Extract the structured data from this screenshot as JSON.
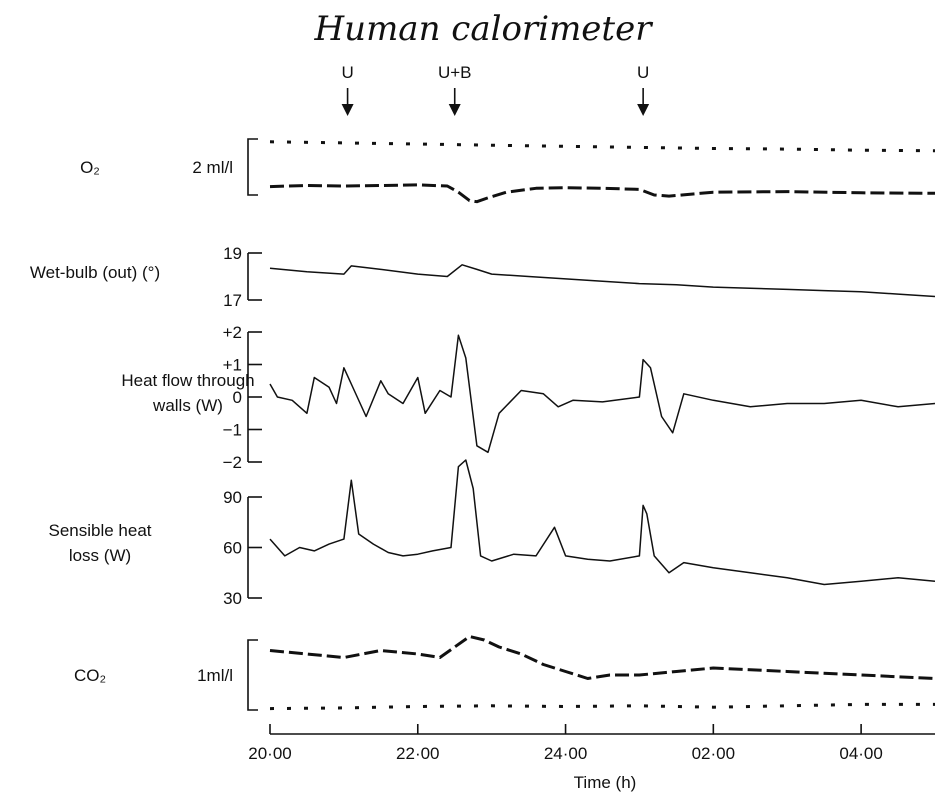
{
  "chart_data": {
    "type": "line",
    "title": "Human calorimeter",
    "xlabel": "Time (h)",
    "xlim": [
      20,
      29
    ],
    "x_ticks": [
      {
        "value": 20,
        "label": "20·00"
      },
      {
        "value": 22,
        "label": "22·00"
      },
      {
        "value": 24,
        "label": "24·00"
      },
      {
        "value": 26,
        "label": "02·00"
      },
      {
        "value": 28,
        "label": "04·00"
      }
    ],
    "annotations": [
      {
        "label": "U",
        "x": 21.05
      },
      {
        "label": "U+B",
        "x": 22.5
      },
      {
        "label": "U",
        "x": 25.05
      }
    ],
    "panels": [
      {
        "id": "o2",
        "label": "O₂",
        "scale_label": "2 ml/l",
        "series": [
          {
            "style": "dotted",
            "x": [
              20,
              21,
              22,
              23,
              24,
              25,
              26,
              27,
              28,
              29
            ],
            "y": [
              0.95,
              0.93,
              0.91,
              0.89,
              0.87,
              0.85,
              0.83,
              0.82,
              0.8,
              0.79
            ]
          },
          {
            "style": "dashed",
            "x": [
              20,
              20.5,
              21,
              21.5,
              22,
              22.4,
              22.55,
              22.7,
              22.8,
              22.95,
              23.2,
              23.6,
              24,
              24.5,
              25,
              25.2,
              25.4,
              26,
              27,
              28,
              29
            ],
            "y": [
              0.15,
              0.17,
              0.16,
              0.17,
              0.18,
              0.16,
              0.05,
              -0.1,
              -0.12,
              -0.05,
              0.05,
              0.12,
              0.13,
              0.12,
              0.1,
              0.0,
              -0.02,
              0.05,
              0.06,
              0.04,
              0.03
            ]
          }
        ]
      },
      {
        "id": "wet-bulb",
        "label": "Wet-bulb (out) (°)",
        "ylim": [
          17,
          19
        ],
        "y_ticks": [
          {
            "value": 19,
            "label": "19"
          },
          {
            "value": 17,
            "label": "17"
          }
        ],
        "series": [
          {
            "x": [
              20,
              20.5,
              21,
              21.1,
              21.5,
              22,
              22.4,
              22.6,
              22.8,
              23,
              23.5,
              24,
              24.5,
              25,
              25.5,
              26,
              26.5,
              27,
              27.5,
              28,
              28.5,
              29
            ],
            "y": [
              18.35,
              18.2,
              18.1,
              18.45,
              18.3,
              18.1,
              18.0,
              18.5,
              18.3,
              18.1,
              18.0,
              17.9,
              17.8,
              17.7,
              17.65,
              17.55,
              17.5,
              17.45,
              17.4,
              17.35,
              17.25,
              17.15
            ]
          }
        ]
      },
      {
        "id": "heat-flow",
        "label": "Heat flow through walls (W)",
        "ylim": [
          -2,
          2
        ],
        "y_ticks": [
          {
            "value": 2,
            "label": "+2"
          },
          {
            "value": 1,
            "label": "+1"
          },
          {
            "value": 0,
            "label": "0"
          },
          {
            "value": -1,
            "label": "−1"
          },
          {
            "value": -2,
            "label": "−2"
          }
        ],
        "series": [
          {
            "x": [
              20,
              20.1,
              20.3,
              20.5,
              20.6,
              20.8,
              20.9,
              21.0,
              21.1,
              21.3,
              21.5,
              21.6,
              21.8,
              22.0,
              22.1,
              22.3,
              22.45,
              22.55,
              22.65,
              22.8,
              22.95,
              23.1,
              23.4,
              23.7,
              23.9,
              24.1,
              24.5,
              25.0,
              25.05,
              25.15,
              25.3,
              25.45,
              25.6,
              26,
              26.5,
              27,
              27.5,
              28,
              28.5,
              29
            ],
            "y": [
              0.4,
              0.0,
              -0.1,
              -0.5,
              0.6,
              0.3,
              -0.2,
              0.9,
              0.4,
              -0.6,
              0.5,
              0.1,
              -0.2,
              0.6,
              -0.5,
              0.2,
              0.0,
              1.9,
              1.2,
              -1.5,
              -1.7,
              -0.5,
              0.2,
              0.1,
              -0.3,
              -0.1,
              -0.15,
              0.0,
              1.15,
              0.9,
              -0.6,
              -1.1,
              0.1,
              -0.1,
              -0.3,
              -0.2,
              -0.2,
              -0.1,
              -0.3,
              -0.2
            ]
          }
        ]
      },
      {
        "id": "sensible-heat",
        "label": "Sensible heat loss (W)",
        "ylim": [
          30,
          90
        ],
        "y_ticks": [
          {
            "value": 90,
            "label": "90"
          },
          {
            "value": 60,
            "label": "60"
          },
          {
            "value": 30,
            "label": "30"
          }
        ],
        "series": [
          {
            "x": [
              20,
              20.2,
              20.4,
              20.6,
              20.8,
              21.0,
              21.1,
              21.2,
              21.4,
              21.6,
              21.8,
              22.0,
              22.2,
              22.45,
              22.55,
              22.65,
              22.75,
              22.85,
              23.0,
              23.3,
              23.6,
              23.85,
              24.0,
              24.3,
              24.6,
              25.0,
              25.05,
              25.1,
              25.2,
              25.4,
              25.6,
              26,
              26.5,
              27,
              27.5,
              28,
              28.5,
              29
            ],
            "y": [
              65,
              55,
              60,
              58,
              62,
              65,
              100,
              68,
              62,
              57,
              55,
              56,
              58,
              60,
              108,
              112,
              95,
              55,
              52,
              56,
              55,
              72,
              55,
              53,
              52,
              55,
              85,
              80,
              55,
              45,
              51,
              48,
              45,
              42,
              38,
              40,
              42,
              40
            ]
          }
        ]
      },
      {
        "id": "co2",
        "label": "CO₂",
        "scale_label": "1ml/l",
        "series": [
          {
            "style": "dashed",
            "x": [
              20,
              20.5,
              21,
              21.5,
              22,
              22.3,
              22.5,
              22.7,
              22.9,
              23.1,
              23.4,
              23.7,
              24,
              24.3,
              24.6,
              25,
              25.5,
              26,
              27,
              28,
              29
            ],
            "y": [
              0.85,
              0.8,
              0.75,
              0.85,
              0.8,
              0.75,
              0.9,
              1.05,
              1.0,
              0.9,
              0.8,
              0.65,
              0.55,
              0.45,
              0.5,
              0.5,
              0.55,
              0.6,
              0.55,
              0.5,
              0.45
            ]
          },
          {
            "style": "dotted",
            "x": [
              20,
              21,
              22,
              23,
              24,
              25,
              26,
              27,
              28,
              29
            ],
            "y": [
              0.02,
              0.03,
              0.05,
              0.06,
              0.05,
              0.06,
              0.04,
              0.06,
              0.08,
              0.08
            ]
          }
        ]
      }
    ]
  }
}
